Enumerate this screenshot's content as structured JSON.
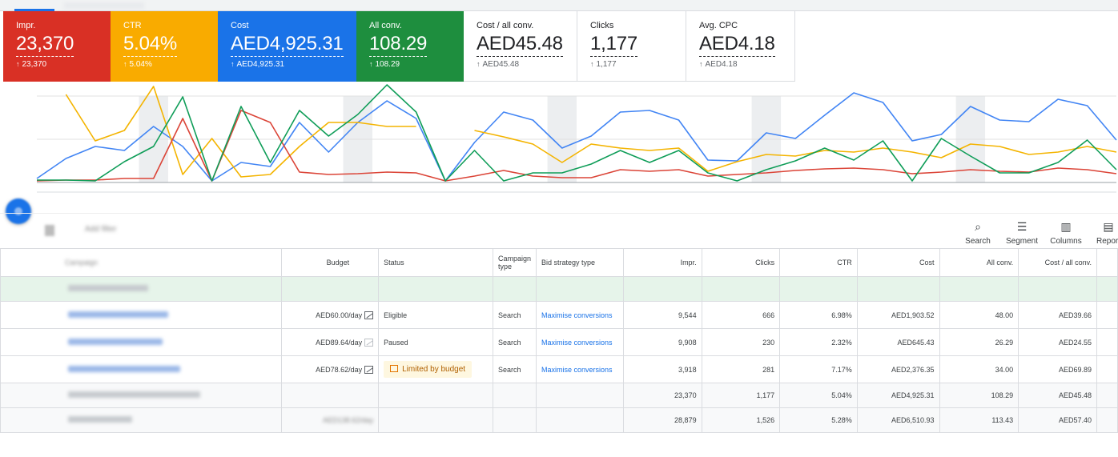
{
  "metrics": [
    {
      "label": "Impr.",
      "value": "23,370",
      "change": "23,370",
      "color": "#d93025"
    },
    {
      "label": "CTR",
      "value": "5.04%",
      "change": "5.04%",
      "color": "#f9ab00"
    },
    {
      "label": "Cost",
      "value": "AED4,925.31",
      "change": "AED4,925.31",
      "color": "#1a73e8"
    },
    {
      "label": "All conv.",
      "value": "108.29",
      "change": "108.29",
      "color": "#1e8e3e"
    },
    {
      "label": "Cost / all conv.",
      "value": "AED45.48",
      "change": "AED45.48"
    },
    {
      "label": "Clicks",
      "value": "1,177",
      "change": "1,177"
    },
    {
      "label": "Avg. CPC",
      "value": "AED4.18",
      "change": "AED4.18"
    }
  ],
  "chart_data": {
    "type": "line",
    "x_count": 38,
    "series": [
      {
        "color": "#4285f4",
        "values": [
          0.05,
          0.3,
          0.45,
          0.4,
          0.7,
          0.45,
          0.02,
          0.25,
          0.2,
          0.75,
          0.38,
          0.75,
          1.02,
          0.8,
          0.02,
          0.5,
          0.88,
          0.78,
          0.43,
          0.58,
          0.88,
          0.9,
          0.78,
          0.28,
          0.27,
          0.62,
          0.55,
          0.84,
          1.12,
          1.0,
          0.52,
          0.6,
          0.95,
          0.78,
          0.76,
          1.04,
          0.96,
          0.53
        ]
      },
      {
        "color": "#f4b400",
        "values": [
          null,
          1.1,
          0.52,
          0.65,
          1.2,
          0.1,
          0.55,
          0.07,
          0.1,
          0.45,
          0.75,
          0.75,
          0.7,
          0.7,
          null,
          0.65,
          0.57,
          0.48,
          0.25,
          0.48,
          0.43,
          0.4,
          0.43,
          0.14,
          0.26,
          0.35,
          0.33,
          0.4,
          0.38,
          0.43,
          0.38,
          0.31,
          0.48,
          0.45,
          0.35,
          0.38,
          0.45,
          0.38
        ]
      },
      {
        "color": "#db4437",
        "values": [
          0.02,
          0.03,
          0.03,
          0.05,
          0.05,
          0.8,
          0.02,
          0.9,
          0.75,
          0.13,
          0.1,
          0.11,
          0.13,
          0.12,
          0.02,
          0.08,
          0.15,
          0.08,
          0.06,
          0.06,
          0.16,
          0.14,
          0.16,
          0.08,
          0.1,
          0.12,
          0.15,
          0.17,
          0.18,
          0.16,
          0.11,
          0.13,
          0.16,
          0.14,
          0.13,
          0.18,
          0.16,
          0.11
        ]
      },
      {
        "color": "#0f9d58",
        "values": [
          0.03,
          0.03,
          0.02,
          0.26,
          0.45,
          1.07,
          0.02,
          0.95,
          0.25,
          0.9,
          0.58,
          0.85,
          1.22,
          0.88,
          0.02,
          0.4,
          0.02,
          0.12,
          0.12,
          0.23,
          0.4,
          0.25,
          0.4,
          0.12,
          0.02,
          0.16,
          0.27,
          0.43,
          0.28,
          0.52,
          0.02,
          0.55,
          0.33,
          0.12,
          0.12,
          0.25,
          0.53,
          0.16
        ]
      }
    ]
  },
  "toolbar": {
    "filter_label": "Add filter",
    "items": [
      {
        "label": "Search",
        "icon": "search-icon",
        "glyph": "⌕"
      },
      {
        "label": "Segment",
        "icon": "segment-icon",
        "glyph": "☰"
      },
      {
        "label": "Columns",
        "icon": "columns-icon",
        "glyph": "▥"
      },
      {
        "label": "Report",
        "icon": "report-icon",
        "glyph": "▤"
      }
    ]
  },
  "table": {
    "headers": {
      "campaign": "Campaign",
      "budget": "Budget",
      "status": "Status",
      "type": "Campaign type",
      "bid": "Bid strategy type",
      "impr": "Impr.",
      "clicks": "Clicks",
      "ctr": "CTR",
      "cost": "Cost",
      "allconv": "All conv.",
      "costconv": "Cost / all conv."
    },
    "rows": [
      {
        "budget": "AED60.00/day",
        "status": "Eligible",
        "type": "Search",
        "bid": "Maximise conversions",
        "impr": "9,544",
        "clicks": "666",
        "ctr": "6.98%",
        "cost": "AED1,903.52",
        "allconv": "48.00",
        "costconv": "AED39.66"
      },
      {
        "budget": "AED89.64/day",
        "status": "Paused",
        "type": "Search",
        "bid": "Maximise conversions",
        "impr": "9,908",
        "clicks": "230",
        "ctr": "2.32%",
        "cost": "AED645.43",
        "allconv": "26.29",
        "costconv": "AED24.55"
      },
      {
        "budget": "AED78.62/day",
        "status": "Limited by budget",
        "type": "Search",
        "bid": "Maximise conversions",
        "impr": "3,918",
        "clicks": "281",
        "ctr": "7.17%",
        "cost": "AED2,376.35",
        "allconv": "34.00",
        "costconv": "AED69.89"
      }
    ],
    "totals": [
      {
        "budget": "",
        "impr": "23,370",
        "clicks": "1,177",
        "ctr": "5.04%",
        "cost": "AED4,925.31",
        "allconv": "108.29",
        "costconv": "AED45.48"
      },
      {
        "budget": "AED138.62/day",
        "impr": "28,879",
        "clicks": "1,526",
        "ctr": "5.28%",
        "cost": "AED6,510.93",
        "allconv": "113.43",
        "costconv": "AED57.40"
      }
    ]
  }
}
